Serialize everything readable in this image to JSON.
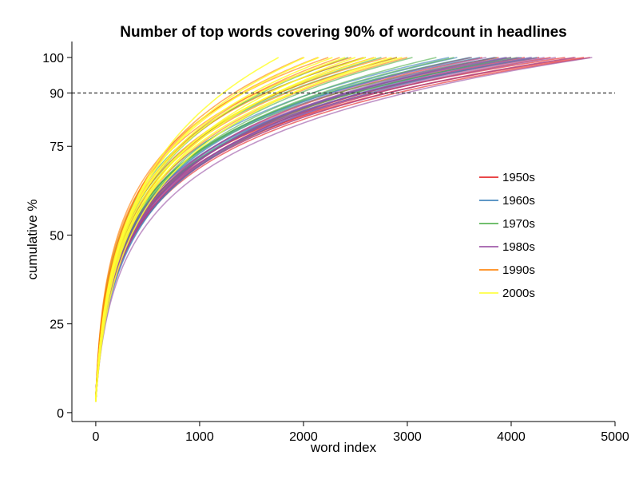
{
  "chart_data": {
    "type": "line",
    "title": "Number of top words covering 90% of wordcount in headlines",
    "xlabel": "word index",
    "ylabel": "cumulative %",
    "xlim": [
      -230,
      5000
    ],
    "ylim": [
      -2.5,
      104.5
    ],
    "xticks": [
      0,
      1000,
      2000,
      3000,
      4000,
      5000
    ],
    "xtick_labels": [
      "0",
      "1000",
      "2000",
      "3000",
      "4000",
      "5000"
    ],
    "yticks": [
      0,
      25,
      50,
      75,
      90,
      100
    ],
    "ytick_labels": [
      "0",
      "25",
      "50",
      "75",
      "90",
      "100"
    ],
    "reference_line": {
      "y": 90,
      "style": "dashed"
    },
    "grid": false,
    "legend_position": "right",
    "series": [
      {
        "name": "1950s",
        "color": "#e41a1c",
        "endpoints": [
          4760,
          4700,
          4610,
          4520,
          4380,
          4270,
          4130,
          4000,
          3880,
          3720
        ]
      },
      {
        "name": "1960s",
        "color": "#377eb8",
        "endpoints": [
          4250,
          4190,
          4100,
          4000,
          3950,
          3840,
          3700,
          3600,
          3480,
          3400
        ]
      },
      {
        "name": "1970s",
        "color": "#4daf4a",
        "endpoints": [
          4060,
          3860,
          3620,
          3450,
          3280,
          3050,
          2900,
          2750,
          2600,
          2430
        ]
      },
      {
        "name": "1980s",
        "color": "#984ea3",
        "endpoints": [
          4780,
          4620,
          4430,
          4320,
          4200,
          4080,
          3960,
          3850,
          3760,
          3620
        ]
      },
      {
        "name": "1990s",
        "color": "#ff7f00",
        "endpoints": [
          3000,
          2900,
          2800,
          2680,
          2580,
          2460,
          2350,
          2240,
          2140,
          2000
        ]
      },
      {
        "name": "2000s",
        "color": "#ffff33",
        "endpoints": [
          2950,
          2850,
          2700,
          2600,
          2500,
          2400,
          2280,
          2150,
          2010,
          1760
        ]
      }
    ]
  }
}
